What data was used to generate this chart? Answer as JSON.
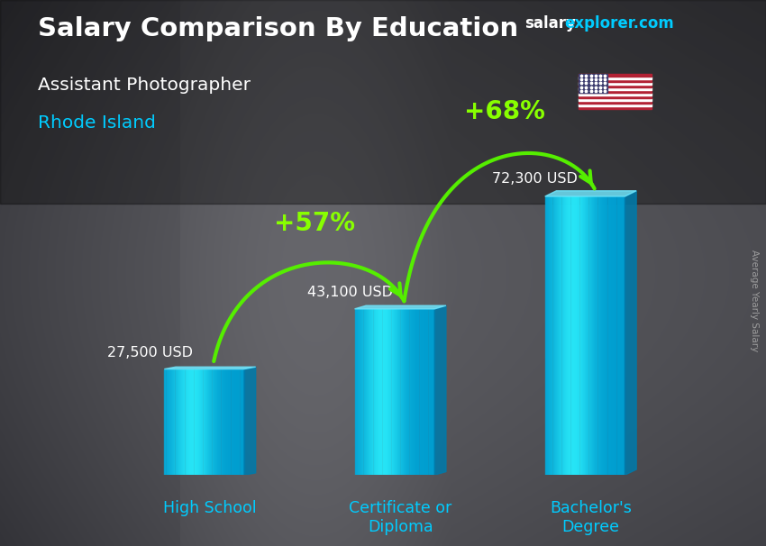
{
  "title_main": "Salary Comparison By Education",
  "subtitle1": "Assistant Photographer",
  "subtitle2": "Rhode Island",
  "ylabel": "Average Yearly Salary",
  "categories": [
    "High School",
    "Certificate or\nDiploma",
    "Bachelor's\nDegree"
  ],
  "values": [
    27500,
    43100,
    72300
  ],
  "value_labels": [
    "27,500 USD",
    "43,100 USD",
    "72,300 USD"
  ],
  "pct_labels": [
    "+57%",
    "+68%"
  ],
  "bar_color_main": "#00b8e8",
  "bar_color_light": "#40d8ff",
  "bar_color_dark": "#007aaa",
  "bar_color_top": "#70e8ff",
  "background_color": "#3a3a3a",
  "title_color": "#ffffff",
  "subtitle1_color": "#ffffff",
  "subtitle2_color": "#00ccff",
  "cat_color": "#00ccff",
  "value_label_color": "#ffffff",
  "pct_color": "#88ff00",
  "arrow_color": "#55ee00",
  "brand_color_salary": "#ffffff",
  "brand_color_explorer_com": "#00ccff",
  "ylabel_color": "#aaaaaa"
}
